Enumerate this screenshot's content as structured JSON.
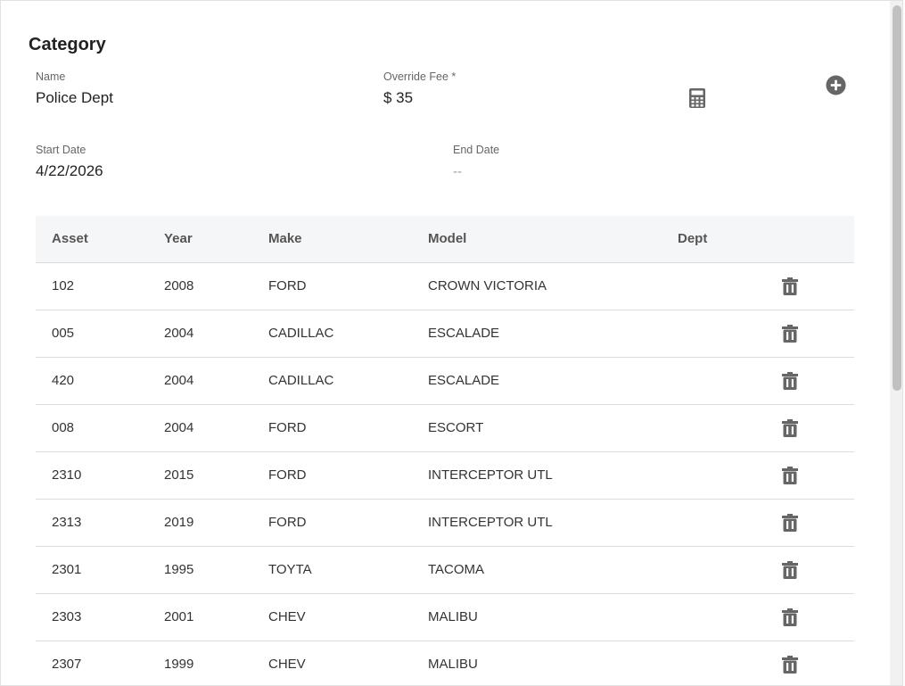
{
  "category": {
    "title": "Category",
    "name_label": "Name",
    "name_value": "Police Dept",
    "fee_label": "Override Fee *",
    "fee_value": "$ 35",
    "start_label": "Start Date",
    "start_value": "4/22/2026",
    "end_label": "End Date",
    "end_value": "--"
  },
  "icons": {
    "calculator": "calculator-icon",
    "add": "plus-circle-icon",
    "delete": "trash-icon"
  },
  "colors": {
    "icon": "#666666",
    "header_bg": "#f5f6f8",
    "border": "#dcdcdc"
  },
  "table": {
    "headers": {
      "asset": "Asset",
      "year": "Year",
      "make": "Make",
      "model": "Model",
      "dept": "Dept"
    },
    "rows": [
      {
        "asset": "102",
        "year": "2008",
        "make": "FORD",
        "model": "CROWN VICTORIA",
        "dept": ""
      },
      {
        "asset": "005",
        "year": "2004",
        "make": "CADILLAC",
        "model": "ESCALADE",
        "dept": ""
      },
      {
        "asset": "420",
        "year": "2004",
        "make": "CADILLAC",
        "model": "ESCALADE",
        "dept": ""
      },
      {
        "asset": "008",
        "year": "2004",
        "make": "FORD",
        "model": "ESCORT",
        "dept": ""
      },
      {
        "asset": "2310",
        "year": "2015",
        "make": "FORD",
        "model": "INTERCEPTOR UTL",
        "dept": ""
      },
      {
        "asset": "2313",
        "year": "2019",
        "make": "FORD",
        "model": "INTERCEPTOR UTL",
        "dept": ""
      },
      {
        "asset": "2301",
        "year": "1995",
        "make": "TOYTA",
        "model": "TACOMA",
        "dept": ""
      },
      {
        "asset": "2303",
        "year": "2001",
        "make": "CHEV",
        "model": "MALIBU",
        "dept": ""
      },
      {
        "asset": "2307",
        "year": "1999",
        "make": "CHEV",
        "model": "MALIBU",
        "dept": ""
      }
    ]
  }
}
